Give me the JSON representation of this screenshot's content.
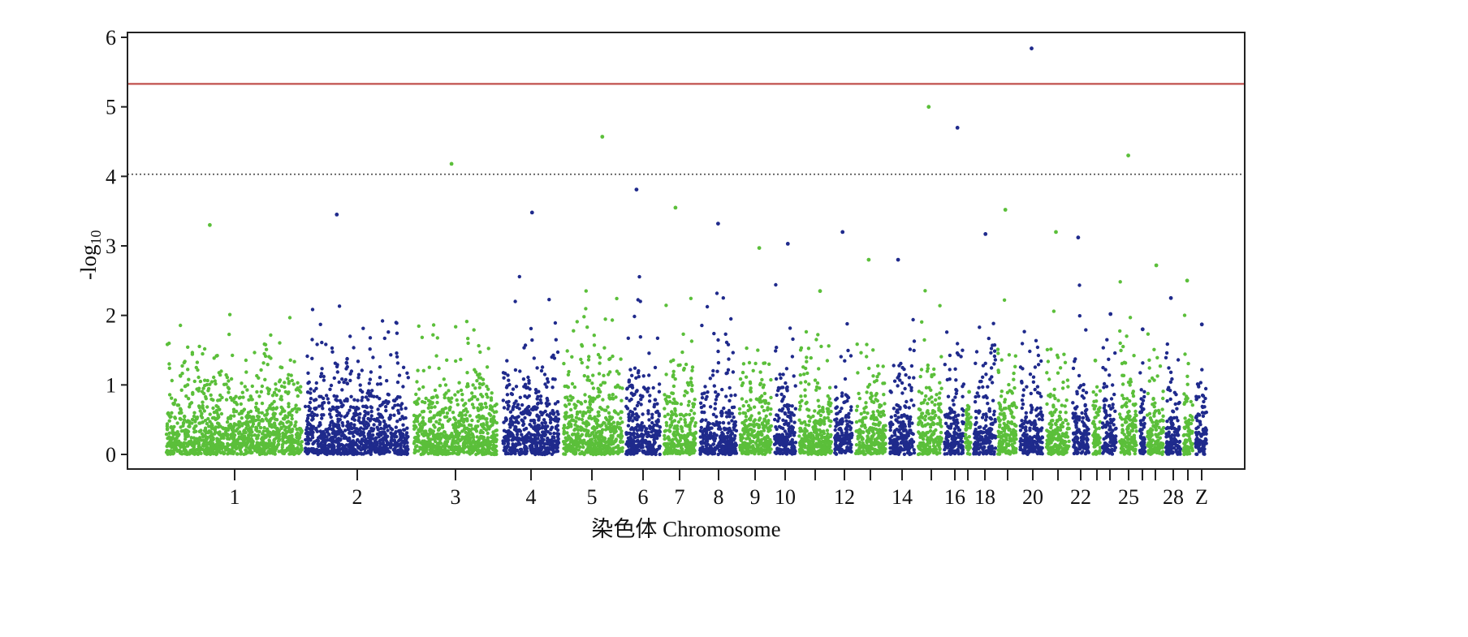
{
  "chart_data": {
    "type": "scatter",
    "subtype": "manhattan",
    "title": "",
    "xlabel": "染色体 Chromosome",
    "ylabel_main": "-log",
    "ylabel_sub": "10",
    "ylim": [
      0,
      6
    ],
    "yticks": [
      0,
      1,
      2,
      3,
      4,
      5,
      6
    ],
    "grid": false,
    "legend": "none",
    "colors": {
      "odd": "#5bbf3a",
      "even": "#1f2a8c",
      "significance_line": "#c0504d",
      "suggestive_line": "#555555",
      "axis": "#222222"
    },
    "thresholds": [
      {
        "name": "significance",
        "value": 5.33,
        "style": "solid"
      },
      {
        "name": "suggestive",
        "value": 4.03,
        "style": "dotted"
      }
    ],
    "chromosomes": [
      {
        "label": "1",
        "shown": true,
        "color": "green",
        "peak": 3.3
      },
      {
        "label": "2",
        "shown": true,
        "color": "blue",
        "peak": 3.45
      },
      {
        "label": "3",
        "shown": true,
        "color": "green",
        "peak": 4.18
      },
      {
        "label": "4",
        "shown": true,
        "color": "blue",
        "peak": 3.48
      },
      {
        "label": "5",
        "shown": true,
        "color": "green",
        "peak": 4.57
      },
      {
        "label": "6",
        "shown": true,
        "color": "blue",
        "peak": 3.81
      },
      {
        "label": "7",
        "shown": true,
        "color": "green",
        "peak": 3.55
      },
      {
        "label": "8",
        "shown": true,
        "color": "blue",
        "peak": 3.32
      },
      {
        "label": "9",
        "shown": true,
        "color": "green",
        "peak": 2.97
      },
      {
        "label": "10",
        "shown": true,
        "color": "blue",
        "peak": 3.03
      },
      {
        "label": "11",
        "shown": false,
        "color": "green",
        "peak": 2.35
      },
      {
        "label": "12",
        "shown": true,
        "color": "blue",
        "peak": 3.2
      },
      {
        "label": "13",
        "shown": false,
        "color": "green",
        "peak": 2.8
      },
      {
        "label": "14",
        "shown": true,
        "color": "blue",
        "peak": 2.8
      },
      {
        "label": "15",
        "shown": false,
        "color": "green",
        "peak": 5.0
      },
      {
        "label": "16",
        "shown": true,
        "color": "blue",
        "peak": 4.7
      },
      {
        "label": "17",
        "shown": false,
        "color": "green",
        "peak": 0.9
      },
      {
        "label": "18",
        "shown": true,
        "color": "blue",
        "peak": 3.17
      },
      {
        "label": "19",
        "shown": false,
        "color": "green",
        "peak": 3.52
      },
      {
        "label": "20",
        "shown": true,
        "color": "blue",
        "peak": 5.84
      },
      {
        "label": "21",
        "shown": false,
        "color": "green",
        "peak": 3.2
      },
      {
        "label": "22",
        "shown": true,
        "color": "blue",
        "peak": 3.12
      },
      {
        "label": "23",
        "shown": false,
        "color": "green",
        "peak": 1.35
      },
      {
        "label": "24",
        "shown": false,
        "color": "blue",
        "peak": 2.02
      },
      {
        "label": "25",
        "shown": true,
        "color": "green",
        "peak": 4.3
      },
      {
        "label": "26",
        "shown": false,
        "color": "blue",
        "peak": 1.8
      },
      {
        "label": "27",
        "shown": false,
        "color": "green",
        "peak": 2.72
      },
      {
        "label": "28",
        "shown": true,
        "color": "blue",
        "peak": 2.25
      },
      {
        "label": "29",
        "shown": false,
        "color": "green",
        "peak": 2.5
      },
      {
        "label": "Z",
        "shown": true,
        "color": "blue",
        "peak": 1.87
      }
    ]
  }
}
